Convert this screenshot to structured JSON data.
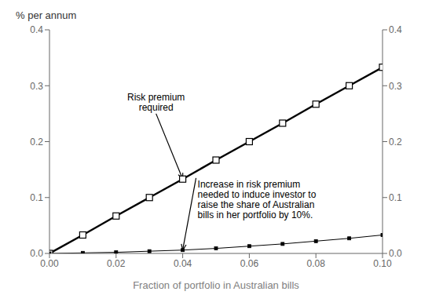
{
  "chart_data": {
    "type": "line",
    "x": [
      0.0,
      0.01,
      0.02,
      0.03,
      0.04,
      0.05,
      0.06,
      0.07,
      0.08,
      0.09,
      0.1
    ],
    "series": [
      {
        "values": [
          0.0,
          0.033,
          0.067,
          0.1,
          0.133,
          0.167,
          0.2,
          0.233,
          0.267,
          0.3,
          0.333
        ],
        "color": "#000000",
        "marker": "open_square",
        "line_style": "solid"
      },
      {
        "values": [
          0.0,
          0.001,
          0.002,
          0.004,
          0.006,
          0.009,
          0.013,
          0.017,
          0.022,
          0.027,
          0.033
        ],
        "color": "#000000",
        "marker": "square",
        "line_style": "solid"
      }
    ],
    "xlabel": "Fraction of portfolio in Australian bills",
    "ylabel": "% per annum",
    "xlim": [
      0.0,
      0.1
    ],
    "ylim": [
      0.0,
      0.4
    ],
    "xticks": [
      {
        "value": 0.0,
        "label": "0.00"
      },
      {
        "value": 0.02,
        "label": "0.02"
      },
      {
        "value": 0.04,
        "label": "0.04"
      },
      {
        "value": 0.06,
        "label": "0.06"
      },
      {
        "value": 0.08,
        "label": "0.08"
      },
      {
        "value": 0.1,
        "label": "0.10"
      }
    ],
    "yticks": [
      {
        "value": 0.0,
        "label": "0.0"
      },
      0.1,
      0.2,
      0.3,
      0.4
    ],
    "y2lim": [
      0.0,
      0.4
    ],
    "y2ticks": [
      {
        "value": 0.0,
        "label": "0.0"
      },
      0.1,
      0.2,
      0.3,
      0.4
    ],
    "grid": false,
    "annotations": [
      {
        "text": "Risk premium\nrequired",
        "xy": [
          0.04,
          0.133
        ],
        "xytext": [
          0.032,
          0.25
        ]
      },
      {
        "text": "Increase in risk premium\nneeded to induce investor to\nraise the share of Australian\nbills in her portfolio by 10%.",
        "xy": [
          0.04,
          0.006
        ],
        "xytext": [
          0.044,
          0.135
        ]
      }
    ]
  }
}
